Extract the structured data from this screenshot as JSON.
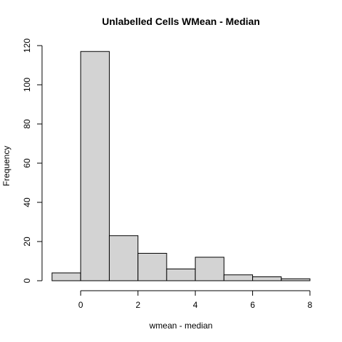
{
  "chart_data": {
    "type": "bar",
    "title": "Unlabelled Cells WMean - Median",
    "xlabel": "wmean - median",
    "ylabel": "Frequency",
    "bins": [
      {
        "from": -1,
        "to": 0,
        "count": 4
      },
      {
        "from": 0,
        "to": 1,
        "count": 117
      },
      {
        "from": 1,
        "to": 2,
        "count": 23
      },
      {
        "from": 2,
        "to": 3,
        "count": 14
      },
      {
        "from": 3,
        "to": 4,
        "count": 6
      },
      {
        "from": 4,
        "to": 5,
        "count": 12
      },
      {
        "from": 5,
        "to": 6,
        "count": 3
      },
      {
        "from": 6,
        "to": 7,
        "count": 2
      },
      {
        "from": 7,
        "to": 8,
        "count": 1
      }
    ],
    "xlim": [
      -1,
      8
    ],
    "ylim": [
      0,
      120
    ],
    "xticks": [
      0,
      2,
      4,
      6,
      8
    ],
    "yticks": [
      0,
      20,
      40,
      60,
      80,
      100,
      120
    ],
    "bar_color": "#d3d3d3",
    "grid": false,
    "legend": "none"
  }
}
